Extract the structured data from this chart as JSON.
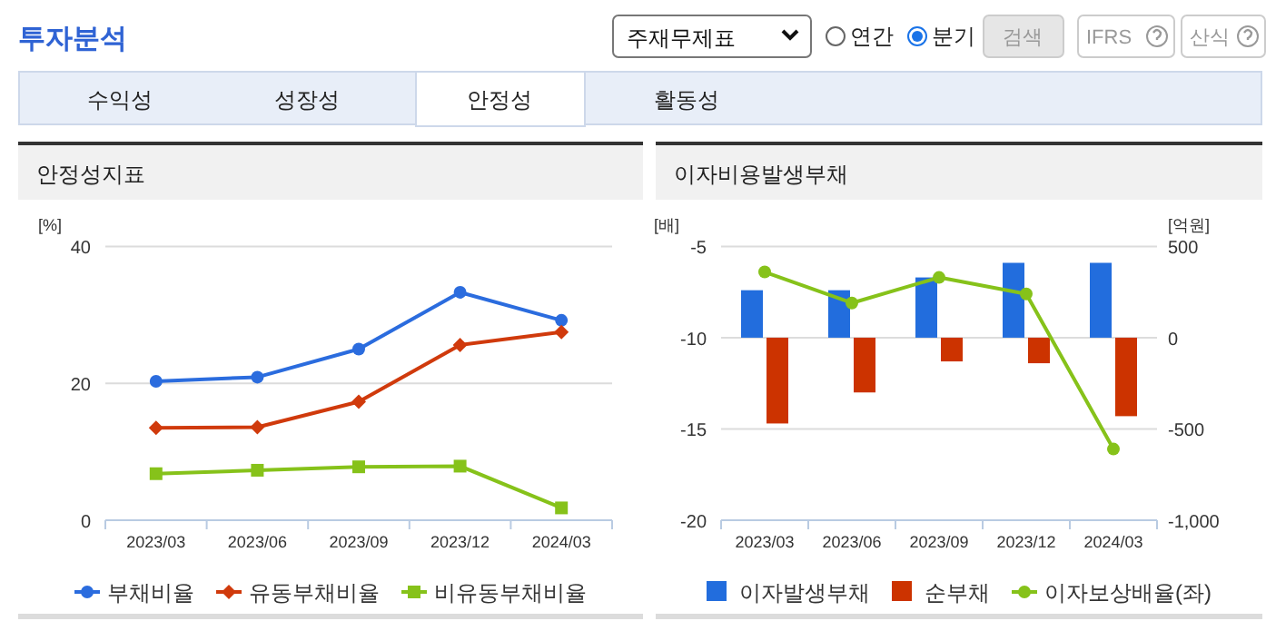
{
  "chart_data": [
    {
      "type": "other",
      "title": "투자분석",
      "annotations": [
        "주재무제표",
        "연간",
        "분기",
        "검색",
        "IFRS",
        "산식",
        "수익성",
        "성장성",
        "안정성",
        "활동성"
      ]
    },
    {
      "type": "line",
      "title": "안정성지표",
      "ylabel": "[%]",
      "categories": [
        "2023/03",
        "2023/06",
        "2023/09",
        "2023/12",
        "2024/03"
      ],
      "ylim": [
        0,
        40
      ],
      "yticks": [
        0,
        20,
        40
      ],
      "grid": "y",
      "legend": "bottom",
      "line_style": "solid",
      "series": [
        {
          "name": "부채비율",
          "color": "#2b6cde",
          "marker": "circle",
          "values": [
            20.3,
            20.9,
            25.0,
            33.3,
            29.2
          ]
        },
        {
          "name": "유동부채비율",
          "color": "#d03a0c",
          "marker": "diamond",
          "values": [
            13.5,
            13.6,
            17.3,
            25.6,
            27.5
          ]
        },
        {
          "name": "비유동부채비율",
          "color": "#86c21a",
          "marker": "square",
          "values": [
            6.8,
            7.3,
            7.8,
            7.9,
            1.8
          ]
        }
      ]
    },
    {
      "type": "bar",
      "title": "이자비용발생부채",
      "ylabel": "[배]",
      "y2label": "[억원]",
      "categories": [
        "2023/03",
        "2023/06",
        "2023/09",
        "2023/12",
        "2024/03"
      ],
      "ylim": [
        -20,
        -5
      ],
      "yticks": [
        -20,
        -15,
        -10,
        -5
      ],
      "y2lim": [
        -1000,
        500
      ],
      "y2ticks": [
        {
          "value": -1000,
          "label": "-1,000"
        },
        -500,
        0,
        500
      ],
      "grid": "y",
      "legend": "bottom",
      "series": [
        {
          "name": "이자발생부채",
          "color": "#226ddd",
          "axis": "y2",
          "values": [
            260,
            260,
            330,
            410,
            410
          ]
        },
        {
          "name": "순부채",
          "color": "#cc3300",
          "axis": "y2",
          "values": [
            -470,
            -300,
            -130,
            -140,
            -430
          ]
        },
        {
          "name": "이자보상배율(좌)",
          "type": "line",
          "color": "#86c21a",
          "marker": "circle",
          "axis": "y",
          "values": [
            -6.4,
            -8.1,
            -6.7,
            -7.6,
            -16.1
          ]
        }
      ]
    }
  ]
}
